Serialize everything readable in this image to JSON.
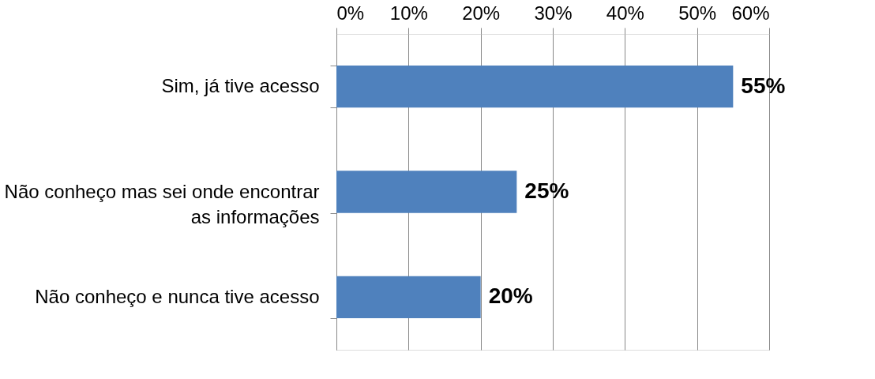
{
  "chart_data": {
    "type": "bar",
    "orientation": "horizontal",
    "categories": [
      "Sim, já tive acesso",
      "Não conheço mas sei onde encontrar as informações",
      "Não conheço e nunca tive acesso"
    ],
    "values": [
      55,
      25,
      20
    ],
    "color": "#4f81bd",
    "value_labels": [
      "55%",
      "25%",
      "20%"
    ],
    "xlim": [
      0,
      60
    ],
    "xticks": [
      {
        "value": 0,
        "label": "0%"
      },
      {
        "value": 10,
        "label": "10%"
      },
      {
        "value": 20,
        "label": "20%"
      },
      {
        "value": 30,
        "label": "30%"
      },
      {
        "value": 40,
        "label": "40%"
      },
      {
        "value": 50,
        "label": "50%"
      },
      {
        "value": 60,
        "label": "60%"
      }
    ],
    "grid": "x"
  }
}
